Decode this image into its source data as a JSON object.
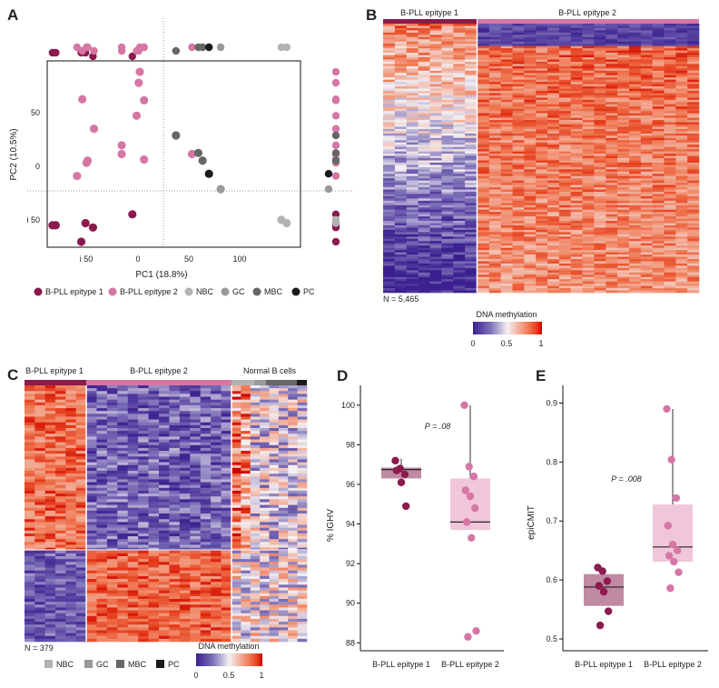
{
  "colors": {
    "epi1": "#8b1a4d",
    "epi2": "#d676a4",
    "NBC": "#b3b3b3",
    "GC": "#999999",
    "MBC": "#666666",
    "PC": "#1a1a1a",
    "epi1_box": "#c08aa3",
    "epi2_box": "#f0c6da",
    "heat_low": "#3a1f8f",
    "heat_mid": "#f4f0f2",
    "heat_high": "#e43a1a"
  },
  "panels": {
    "A": {
      "label": "A",
      "xlabel": "PC1 (18.8%)",
      "ylabel": "PC2 (10.5%)",
      "xticks": [
        "i 50",
        "0",
        "50",
        "100"
      ],
      "yticks": [
        "50",
        "0",
        "i 50"
      ],
      "legend": [
        "B-PLL epitype 1",
        "B-PLL epitype 2",
        "NBC",
        "GC",
        "MBC",
        "PC"
      ]
    },
    "B": {
      "label": "B",
      "group1": "B-PLL epitype 1",
      "group2": "B-PLL epitype 2",
      "n_label": "N = 5,465",
      "scale_title": "DNA methylation",
      "scale_ticks": [
        "0",
        "0.5",
        "1"
      ]
    },
    "C": {
      "label": "C",
      "group1": "B-PLL epitype 1",
      "group2": "B-PLL epitype 2",
      "group3": "Normal B cells",
      "n_label": "N = 379",
      "legend": [
        "NBC",
        "GC",
        "MBC",
        "PC"
      ],
      "scale_title": "DNA methylation",
      "scale_ticks": [
        "0",
        "0.5",
        "1"
      ]
    },
    "D": {
      "label": "D",
      "ylabel": "% IGHV",
      "pvalue": "P = .08",
      "yticks": [
        "100",
        "98",
        "96",
        "94",
        "92",
        "90",
        "88"
      ],
      "xticks": [
        "B-PLL epitype 1",
        "B-PLL epitype 2"
      ]
    },
    "E": {
      "label": "E",
      "ylabel": "epiCMIT",
      "pvalue": "P = .008",
      "yticks": [
        "0.9",
        "0.8",
        "0.7",
        "0.6",
        "0.5"
      ],
      "xticks": [
        "B-PLL epitype 1",
        "B-PLL epitype 2"
      ]
    }
  },
  "chart_data": [
    {
      "type": "scatter",
      "panel": "A",
      "xlabel": "PC1 (18.8%)",
      "ylabel": "PC2 (10.5%)",
      "xlim": [
        -88,
        150
      ],
      "ylim": [
        -75,
        95
      ],
      "reference_lines": {
        "x": 25,
        "y": -23
      },
      "series": [
        {
          "name": "B-PLL epitype 1",
          "points": [
            [
              -83,
              -55
            ],
            [
              -80,
              -55
            ],
            [
              -52,
              -53
            ],
            [
              -45,
              -57
            ],
            [
              -56,
              -70
            ],
            [
              -8,
              -45
            ]
          ]
        },
        {
          "name": "B-PLL epitype 2",
          "points": [
            [
              -55,
              60
            ],
            [
              -44,
              33
            ],
            [
              -50,
              4
            ],
            [
              -51,
              2
            ],
            [
              -60,
              -10
            ],
            [
              -18,
              18
            ],
            [
              -18,
              10
            ],
            [
              -1,
              85
            ],
            [
              -2,
              75
            ],
            [
              3,
              59
            ],
            [
              -4,
              45
            ],
            [
              3,
              5
            ],
            [
              48,
              10
            ]
          ]
        },
        {
          "name": "NBC",
          "points": [
            [
              132,
              -50
            ],
            [
              137,
              -53
            ]
          ]
        },
        {
          "name": "GC",
          "points": [
            [
              75,
              -22
            ]
          ]
        },
        {
          "name": "MBC",
          "points": [
            [
              33,
              27
            ],
            [
              54,
              11
            ],
            [
              58,
              4
            ]
          ]
        },
        {
          "name": "PC",
          "points": [
            [
              64,
              -8
            ]
          ]
        }
      ]
    },
    {
      "type": "heatmap",
      "panel": "B",
      "groups": [
        "B-PLL epitype 1",
        "B-PLL epitype 2"
      ],
      "n_features": 5465,
      "scale": [
        0,
        1
      ]
    },
    {
      "type": "heatmap",
      "panel": "C",
      "groups": [
        "B-PLL epitype 1",
        "B-PLL epitype 2",
        "Normal B cells"
      ],
      "normal_subgroups": [
        "NBC",
        "GC",
        "MBC",
        "PC"
      ],
      "n_features": 379,
      "scale": [
        0,
        1
      ]
    },
    {
      "type": "box",
      "panel": "D",
      "ylabel": "% IGHV",
      "ylim": [
        87.6,
        101
      ],
      "categories": [
        "B-PLL epitype 1",
        "B-PLL epitype 2"
      ],
      "boxes": [
        {
          "q1": 96.3,
          "median": 96.75,
          "q3": 96.85,
          "whisker_low": 96.3,
          "whisker_high": 97.3,
          "points": [
            97.2,
            96.8,
            96.5,
            96.7,
            96.1,
            94.9
          ]
        },
        {
          "q1": 93.7,
          "median": 94.1,
          "q3": 96.3,
          "whisker_low": 93.7,
          "whisker_high": 100.0,
          "points": [
            100.0,
            96.9,
            96.4,
            95.7,
            95.4,
            94.8,
            94.1,
            93.3,
            88.6,
            88.3
          ]
        }
      ],
      "annotation": "P = .08"
    },
    {
      "type": "box",
      "panel": "E",
      "ylabel": "epiCMIT",
      "ylim": [
        0.48,
        0.93
      ],
      "categories": [
        "B-PLL epitype 1",
        "B-PLL epitype 2"
      ],
      "boxes": [
        {
          "q1": 0.556,
          "median": 0.588,
          "q3": 0.61,
          "whisker_low": 0.556,
          "whisker_high": 0.61,
          "points": [
            0.621,
            0.615,
            0.598,
            0.59,
            0.58,
            0.547,
            0.523
          ]
        },
        {
          "q1": 0.631,
          "median": 0.656,
          "q3": 0.728,
          "whisker_low": 0.631,
          "whisker_high": 0.89,
          "points": [
            0.89,
            0.804,
            0.739,
            0.692,
            0.66,
            0.65,
            0.641,
            0.631,
            0.613,
            0.586
          ]
        }
      ],
      "annotation": "P = .008"
    }
  ]
}
